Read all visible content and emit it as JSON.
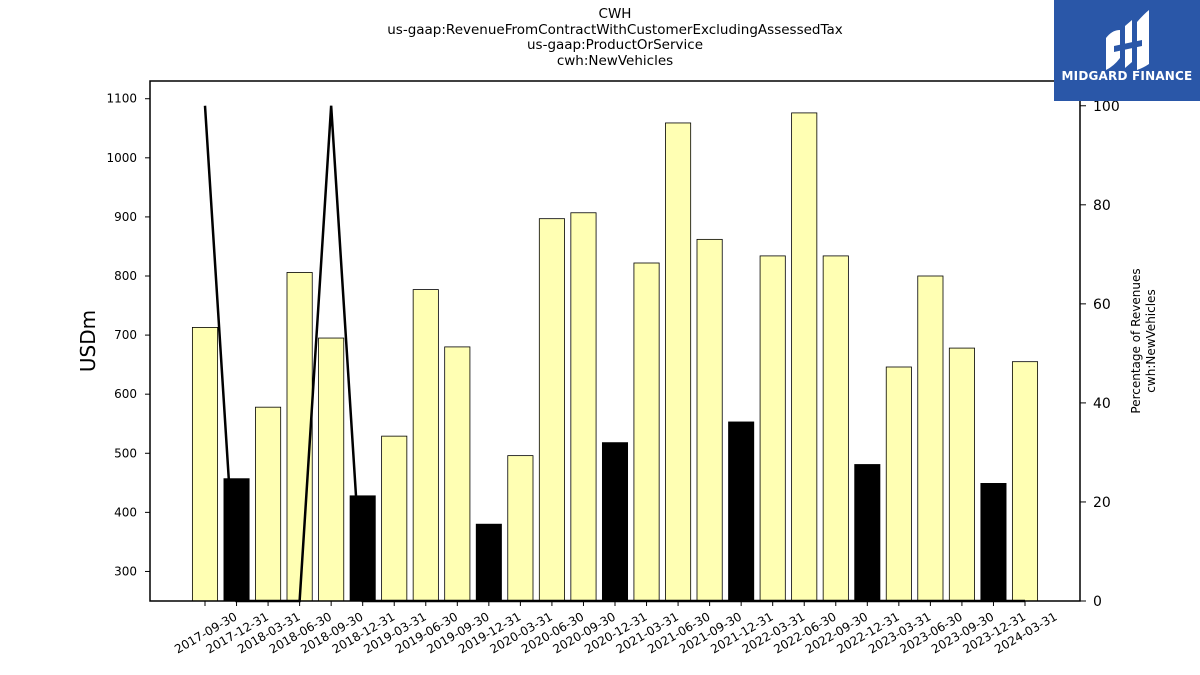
{
  "chart_data": {
    "type": "bar",
    "title_lines": [
      "CWH",
      "us-gaap:RevenueFromContractWithCustomerExcludingAssessedTax",
      "us-gaap:ProductOrService",
      "cwh:NewVehicles"
    ],
    "ylabel": "USDm",
    "y2label_lines": [
      "Percentage of Revenues",
      "cwh:NewVehicles"
    ],
    "categories": [
      "2017-09-30",
      "2017-12-31",
      "2018-03-31",
      "2018-06-30",
      "2018-09-30",
      "2018-12-31",
      "2019-03-31",
      "2019-06-30",
      "2019-09-30",
      "2019-12-31",
      "2020-03-31",
      "2020-06-30",
      "2020-09-30",
      "2020-12-31",
      "2021-03-31",
      "2021-06-30",
      "2021-09-30",
      "2021-12-31",
      "2022-03-31",
      "2022-06-30",
      "2022-09-30",
      "2022-12-31",
      "2023-03-31",
      "2023-06-30",
      "2023-09-30",
      "2023-12-31",
      "2024-03-31"
    ],
    "values": [
      713,
      457,
      578,
      806,
      695,
      428,
      529,
      777,
      680,
      380,
      496,
      897,
      907,
      518,
      822,
      1059,
      862,
      553,
      834,
      1076,
      834,
      481,
      646,
      800,
      678,
      449,
      655
    ],
    "bar_colors": [
      "#ffffb3",
      "#000000",
      "#ffffb3",
      "#ffffb3",
      "#ffffb3",
      "#000000",
      "#ffffb3",
      "#ffffb3",
      "#ffffb3",
      "#000000",
      "#ffffb3",
      "#ffffb3",
      "#ffffb3",
      "#000000",
      "#ffffb3",
      "#ffffb3",
      "#ffffb3",
      "#000000",
      "#ffffb3",
      "#ffffb3",
      "#ffffb3",
      "#000000",
      "#ffffb3",
      "#ffffb3",
      "#ffffb3",
      "#000000",
      "#ffffb3"
    ],
    "ylim": [
      250,
      1130
    ],
    "yticks": [
      300,
      400,
      500,
      600,
      700,
      800,
      900,
      1000,
      1100
    ],
    "y2lim": [
      0,
      105
    ],
    "y2ticks": [
      0,
      20,
      40,
      60,
      80,
      100
    ],
    "percentage_series": {
      "color": "#000000",
      "values": [
        100,
        0,
        0,
        0,
        100,
        0,
        0,
        0,
        0,
        0,
        0,
        0,
        0,
        0,
        0,
        0,
        0,
        0,
        0,
        0,
        0,
        0,
        0,
        0,
        0,
        0,
        0
      ]
    },
    "grid": false
  },
  "logo": {
    "text": "MIDGARD FINANCE",
    "bg_color": "#2a57a8"
  }
}
